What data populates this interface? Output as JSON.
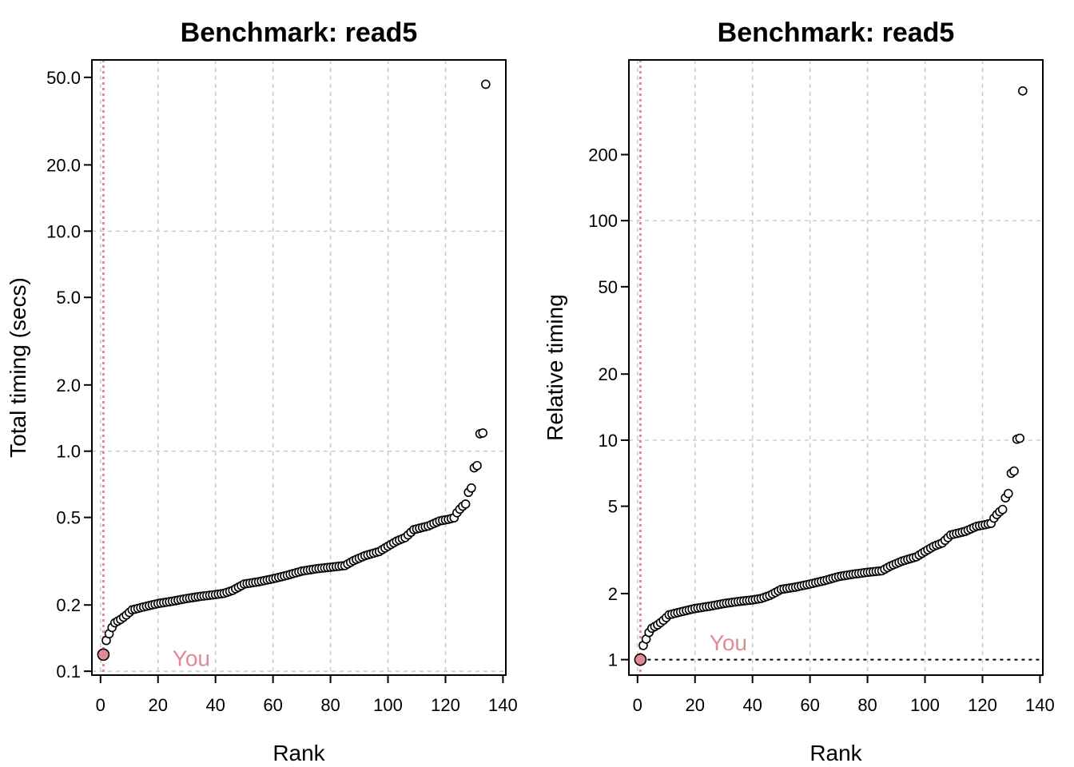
{
  "colors": {
    "highlight": "#E08A96",
    "grid": "#C8C8C8",
    "point_stroke": "#000000",
    "point_fill": "#FFFFFF"
  },
  "chart_data": [
    {
      "type": "scatter",
      "title": "Benchmark: read5",
      "xlabel": "Rank",
      "ylabel": "Total timing (secs)",
      "y_scale": "log",
      "xlim": [
        -3,
        141
      ],
      "ylim": [
        0.096,
        60
      ],
      "x_ticks": [
        0,
        20,
        40,
        60,
        80,
        100,
        120,
        140
      ],
      "y_ticks": [
        0.1,
        0.2,
        0.5,
        1.0,
        2.0,
        5.0,
        10.0,
        20.0,
        50.0
      ],
      "y_tick_labels": [
        "0.1",
        "0.2",
        "0.5",
        "1.0",
        "2.0",
        "5.0",
        "10.0",
        "20.0",
        "50.0"
      ],
      "grid_x": [
        0,
        20,
        40,
        60,
        80,
        100,
        120
      ],
      "grid_y": [
        0.1,
        1.0,
        10.0
      ],
      "you": {
        "rank": 1,
        "value": 0.119,
        "label": "You",
        "label_rank": 25,
        "label_value": 0.115
      },
      "reference_line": null,
      "anchors": [
        [
          2,
          0.138
        ],
        [
          3,
          0.148
        ],
        [
          4,
          0.158
        ],
        [
          5,
          0.166
        ],
        [
          7,
          0.172
        ],
        [
          9,
          0.18
        ],
        [
          11,
          0.19
        ],
        [
          15,
          0.196
        ],
        [
          20,
          0.203
        ],
        [
          25,
          0.208
        ],
        [
          30,
          0.214
        ],
        [
          35,
          0.219
        ],
        [
          40,
          0.223
        ],
        [
          43,
          0.226
        ],
        [
          46,
          0.233
        ],
        [
          50,
          0.249
        ],
        [
          55,
          0.255
        ],
        [
          60,
          0.263
        ],
        [
          65,
          0.273
        ],
        [
          70,
          0.285
        ],
        [
          75,
          0.292
        ],
        [
          80,
          0.297
        ],
        [
          85,
          0.302
        ],
        [
          88,
          0.318
        ],
        [
          92,
          0.335
        ],
        [
          97,
          0.35
        ],
        [
          100,
          0.37
        ],
        [
          103,
          0.39
        ],
        [
          106,
          0.405
        ],
        [
          109,
          0.44
        ],
        [
          114,
          0.457
        ],
        [
          118,
          0.482
        ],
        [
          121,
          0.49
        ],
        [
          123,
          0.498
        ],
        [
          124,
          0.525
        ],
        [
          125,
          0.545
        ],
        [
          126,
          0.562
        ],
        [
          127,
          0.575
        ],
        [
          128,
          0.65
        ],
        [
          129,
          0.68
        ],
        [
          130,
          0.84
        ],
        [
          131,
          0.86
        ],
        [
          132,
          1.2
        ],
        [
          133,
          1.21
        ],
        [
          134,
          46.5
        ]
      ]
    },
    {
      "type": "scatter",
      "title": "Benchmark: read5",
      "xlabel": "Rank",
      "ylabel": "Relative timing",
      "y_scale": "log",
      "xlim": [
        -3,
        141
      ],
      "ylim": [
        0.85,
        540
      ],
      "x_ticks": [
        0,
        20,
        40,
        60,
        80,
        100,
        120,
        140
      ],
      "y_ticks": [
        1,
        2,
        5,
        10,
        20,
        50,
        100,
        200
      ],
      "y_tick_labels": [
        "1",
        "2",
        "5",
        "10",
        "20",
        "50",
        "100",
        "200"
      ],
      "grid_x": [
        0,
        20,
        40,
        60,
        80,
        100,
        120
      ],
      "grid_y": [
        100,
        10
      ],
      "you": {
        "rank": 1,
        "value": 1,
        "label": "You",
        "label_rank": 25,
        "label_value": 1.2
      },
      "reference_line": {
        "value": 1
      },
      "anchors": [
        [
          2,
          1.16
        ],
        [
          3,
          1.24
        ],
        [
          4,
          1.33
        ],
        [
          5,
          1.39
        ],
        [
          7,
          1.44
        ],
        [
          9,
          1.51
        ],
        [
          11,
          1.6
        ],
        [
          15,
          1.65
        ],
        [
          20,
          1.71
        ],
        [
          25,
          1.75
        ],
        [
          30,
          1.8
        ],
        [
          35,
          1.84
        ],
        [
          40,
          1.87
        ],
        [
          43,
          1.9
        ],
        [
          46,
          1.96
        ],
        [
          50,
          2.09
        ],
        [
          55,
          2.14
        ],
        [
          60,
          2.21
        ],
        [
          65,
          2.29
        ],
        [
          70,
          2.39
        ],
        [
          75,
          2.45
        ],
        [
          80,
          2.5
        ],
        [
          85,
          2.54
        ],
        [
          88,
          2.67
        ],
        [
          92,
          2.81
        ],
        [
          97,
          2.94
        ],
        [
          100,
          3.11
        ],
        [
          103,
          3.28
        ],
        [
          106,
          3.4
        ],
        [
          109,
          3.7
        ],
        [
          114,
          3.84
        ],
        [
          118,
          4.05
        ],
        [
          121,
          4.12
        ],
        [
          123,
          4.18
        ],
        [
          124,
          4.41
        ],
        [
          125,
          4.58
        ],
        [
          126,
          4.72
        ],
        [
          127,
          4.83
        ],
        [
          128,
          5.46
        ],
        [
          129,
          5.71
        ],
        [
          130,
          7.06
        ],
        [
          131,
          7.23
        ],
        [
          132,
          10.1
        ],
        [
          133,
          10.2
        ],
        [
          134,
          390
        ]
      ]
    }
  ]
}
